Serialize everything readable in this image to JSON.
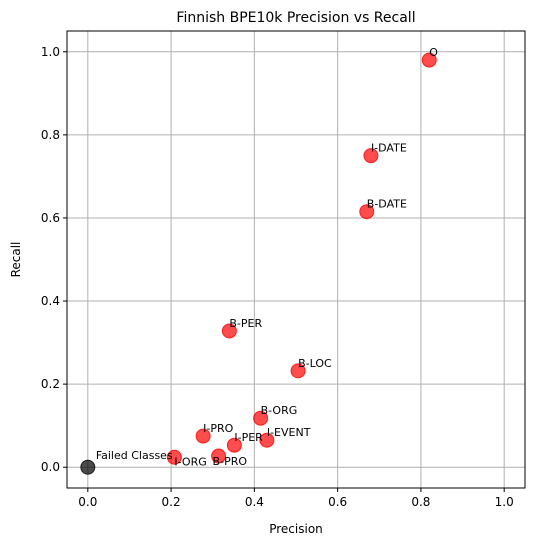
{
  "chart_data": {
    "type": "scatter",
    "title": "Finnish BPE10k Precision vs Recall",
    "xlabel": "Precision",
    "ylabel": "Recall",
    "xlim": [
      -0.05,
      1.05
    ],
    "ylim": [
      -0.05,
      1.05
    ],
    "grid": true,
    "xticks": [
      {
        "value": 0.0,
        "label": "0.0"
      },
      {
        "value": 0.2,
        "label": "0.2"
      },
      {
        "value": 0.4,
        "label": "0.4"
      },
      {
        "value": 0.6,
        "label": "0.6"
      },
      {
        "value": 0.8,
        "label": "0.8"
      },
      {
        "value": 1.0,
        "label": "1.0"
      }
    ],
    "yticks": [
      {
        "value": 0.0,
        "label": "0.0"
      },
      {
        "value": 0.2,
        "label": "0.2"
      },
      {
        "value": 0.4,
        "label": "0.4"
      },
      {
        "value": 0.6,
        "label": "0.6"
      },
      {
        "value": 0.8,
        "label": "0.8"
      },
      {
        "value": 1.0,
        "label": "1.0"
      }
    ],
    "colors": {
      "success": "#ff0000",
      "failed": "#000000"
    },
    "points": [
      {
        "label": "O",
        "x": 0.82,
        "y": 0.98,
        "group": "success"
      },
      {
        "label": "I-DATE",
        "x": 0.68,
        "y": 0.75,
        "group": "success"
      },
      {
        "label": "B-DATE",
        "x": 0.67,
        "y": 0.615,
        "group": "success"
      },
      {
        "label": "B-PER",
        "x": 0.34,
        "y": 0.328,
        "group": "success"
      },
      {
        "label": "B-LOC",
        "x": 0.505,
        "y": 0.232,
        "group": "success"
      },
      {
        "label": "B-ORG",
        "x": 0.415,
        "y": 0.118,
        "group": "success"
      },
      {
        "label": "I-PRO",
        "x": 0.277,
        "y": 0.075,
        "group": "success"
      },
      {
        "label": "I-EVENT",
        "x": 0.43,
        "y": 0.065,
        "group": "success"
      },
      {
        "label": "I-PER",
        "x": 0.352,
        "y": 0.053,
        "group": "success"
      },
      {
        "label": "I-ORG",
        "x": 0.208,
        "y": 0.024,
        "group": "success"
      },
      {
        "label": "B-PRO",
        "x": 0.314,
        "y": 0.027,
        "group": "success"
      },
      {
        "label": "Failed Classes",
        "x": 0.0,
        "y": 0.0,
        "group": "failed"
      }
    ]
  }
}
